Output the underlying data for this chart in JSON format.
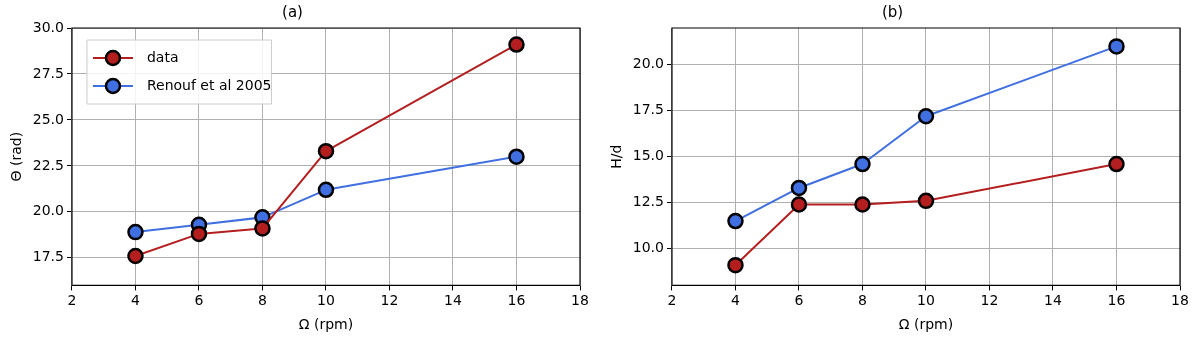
{
  "chart_data": [
    {
      "type": "line",
      "title": "(a)",
      "xlabel": "Ω (rpm)",
      "ylabel": "Θ (rad)",
      "x": [
        4,
        6,
        8,
        10,
        16
      ],
      "xlim": [
        2,
        18
      ],
      "xticks": [
        2,
        4,
        6,
        8,
        10,
        12,
        14,
        16,
        18
      ],
      "ylim": [
        16,
        30
      ],
      "yticks": [
        {
          "value": 17.5,
          "label": "17.5"
        },
        {
          "value": 20,
          "label": "20.0"
        },
        {
          "value": 22.5,
          "label": "22.5"
        },
        {
          "value": 25,
          "label": "25.0"
        },
        {
          "value": 27.5,
          "label": "27.5"
        },
        {
          "value": 30,
          "label": "30.0"
        }
      ],
      "grid": true,
      "legend": "top left",
      "marker": "circle",
      "series": [
        {
          "name": "data",
          "color": "#b41e1e",
          "values": [
            17.6,
            18.8,
            19.1,
            23.3,
            29.1
          ]
        },
        {
          "name": "Renouf et al 2005",
          "color": "#3f6fe0",
          "values": [
            18.9,
            19.3,
            19.7,
            21.2,
            23.0
          ]
        }
      ]
    },
    {
      "type": "line",
      "title": "(b)",
      "xlabel": "Ω (rpm)",
      "ylabel": "H/d",
      "x": [
        4,
        6,
        8,
        10,
        16
      ],
      "xlim": [
        2,
        18
      ],
      "xticks": [
        2,
        4,
        6,
        8,
        10,
        12,
        14,
        16,
        18
      ],
      "ylim": [
        8,
        22
      ],
      "yticks": [
        {
          "value": 10,
          "label": "10.0"
        },
        {
          "value": 12.5,
          "label": "12.5"
        },
        {
          "value": 15,
          "label": "15.0"
        },
        {
          "value": 17.5,
          "label": "17.5"
        },
        {
          "value": 20,
          "label": "20.0"
        }
      ],
      "grid": true,
      "marker": "circle",
      "series": [
        {
          "color": "#b41e1e",
          "values": [
            9.1,
            12.4,
            12.4,
            12.6,
            14.6
          ]
        },
        {
          "color": "#3f6fe0",
          "values": [
            11.5,
            13.3,
            14.6,
            17.2,
            21.0
          ]
        }
      ]
    }
  ]
}
